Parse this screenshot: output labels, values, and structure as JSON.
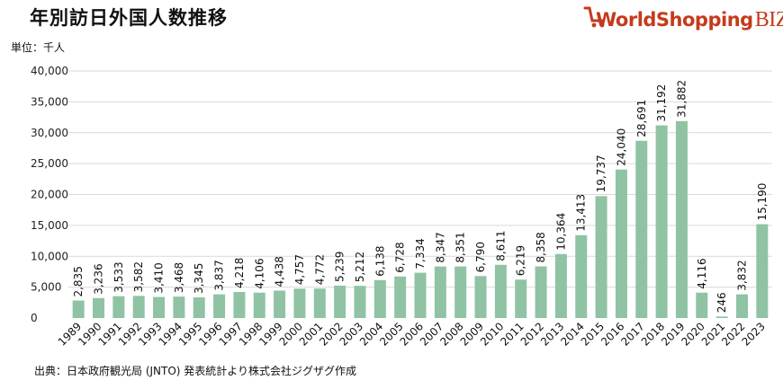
{
  "header": {
    "title": "年別訪日外国人数推移",
    "unit": "単位：千人",
    "source": "出典：日本政府観光局 (JNTO) 発表統計より株式会社ジグザグ作成"
  },
  "logo": {
    "main": "WorldShopping",
    "suffix": "BIZ",
    "brand_color": "#c53a1c"
  },
  "colors": {
    "bar": "#8fc3a3",
    "grid": "#d9d9d9"
  },
  "chart_data": {
    "type": "bar",
    "title": "年別訪日外国人数推移",
    "ylabel": "単位：千人",
    "xlabel": "",
    "ylim": [
      0,
      40000
    ],
    "yticks": [
      0,
      5000,
      10000,
      15000,
      20000,
      25000,
      30000,
      35000,
      40000
    ],
    "ytick_labels": [
      "0",
      "5,000",
      "10,000",
      "15,000",
      "20,000",
      "25,000",
      "30,000",
      "35,000",
      "40,000"
    ],
    "grid": true,
    "categories": [
      "1989",
      "1990",
      "1991",
      "1992",
      "1993",
      "1994",
      "1995",
      "1996",
      "1997",
      "1998",
      "1999",
      "2000",
      "2001",
      "2002",
      "2003",
      "2004",
      "2005",
      "2006",
      "2007",
      "2008",
      "2009",
      "2010",
      "2011",
      "2012",
      "2013",
      "2014",
      "2015",
      "2016",
      "2017",
      "2018",
      "2019",
      "2020",
      "2021",
      "2022",
      "2023"
    ],
    "values": [
      2835,
      3236,
      3533,
      3582,
      3410,
      3468,
      3345,
      3837,
      4218,
      4106,
      4438,
      4757,
      4772,
      5239,
      5212,
      6138,
      6728,
      7334,
      8347,
      8351,
      6790,
      8611,
      6219,
      8358,
      10364,
      13413,
      19737,
      24040,
      28691,
      31192,
      31882,
      4116,
      246,
      3832,
      15190
    ],
    "labels": [
      "2,835",
      "3,236",
      "3,533",
      "3,582",
      "3,410",
      "3,468",
      "3,345",
      "3,837",
      "4,218",
      "4,106",
      "4,438",
      "4,757",
      "4,772",
      "5,239",
      "5,212",
      "6,138",
      "6,728",
      "7,334",
      "8,347",
      "8,351",
      "6,790",
      "8,611",
      "6,219",
      "8,358",
      "10,364",
      "13,413",
      "19,737",
      "24,040",
      "28,691",
      "31,192",
      "31,882",
      "4,116",
      "246",
      "3,832",
      "15,190"
    ]
  }
}
